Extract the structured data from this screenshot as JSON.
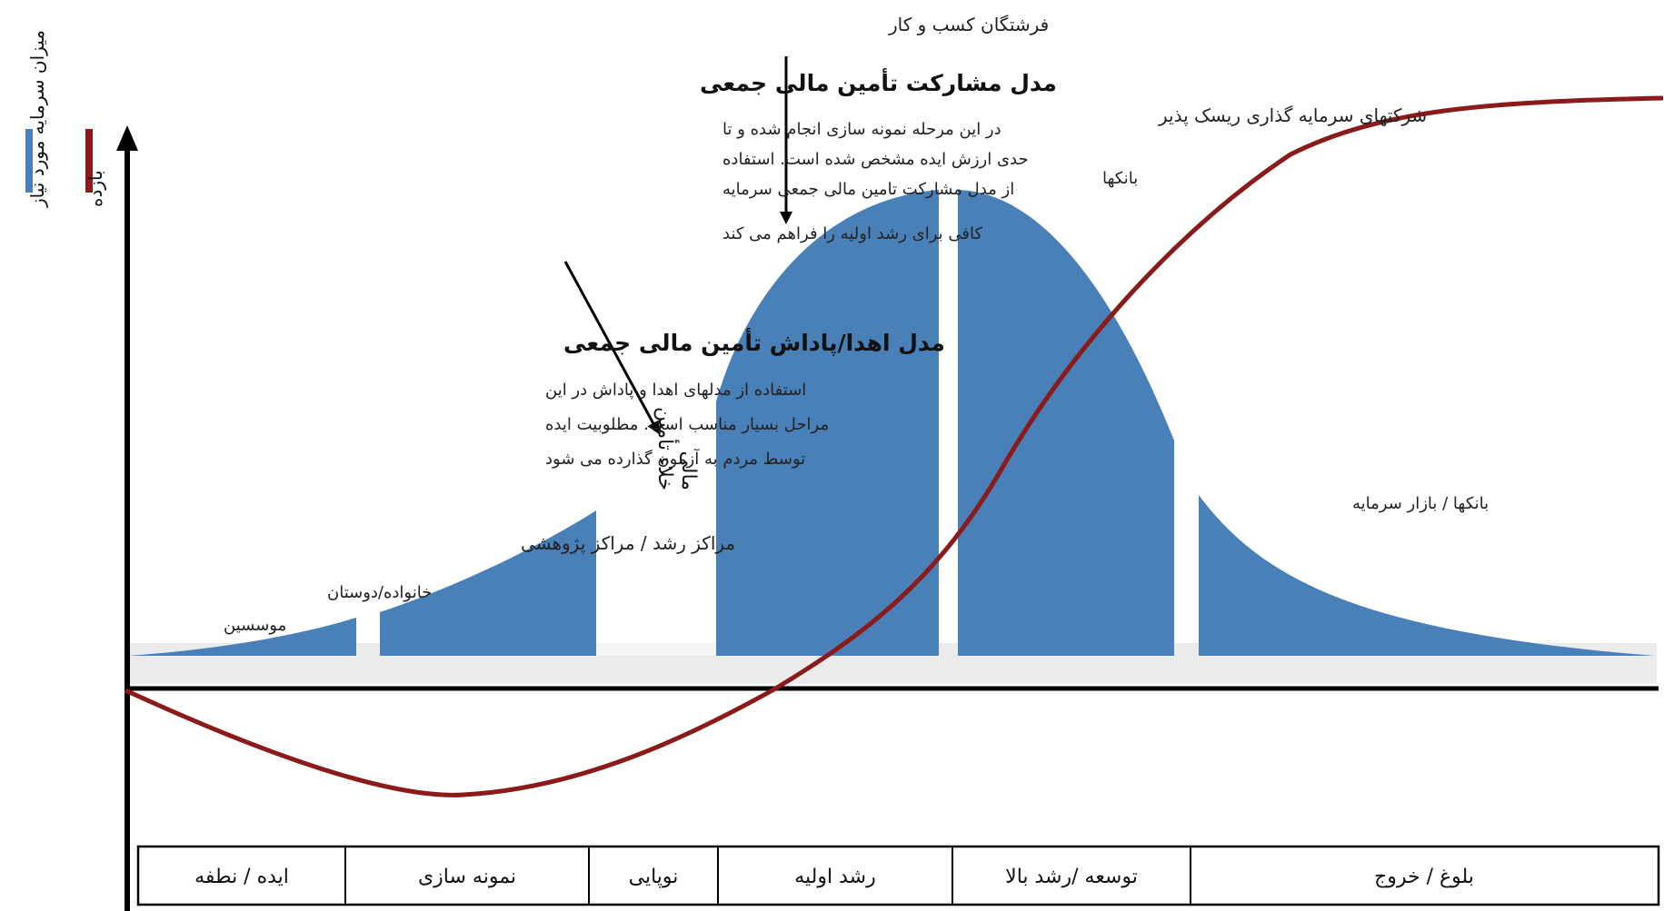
{
  "legend": {
    "capital": {
      "label": "میزان سرمایه مورد نیاز",
      "color": "#4a80b8"
    },
    "return": {
      "label": "بازده",
      "color": "#8b1a1a"
    }
  },
  "annotations": {
    "angels": "فرشتگان کسب و کار",
    "vc": "شرکتهای سرمایه گذاری ریسک پذیر",
    "banks_top": "بانکها",
    "banks_market": "بانکها / بازار سرمایه",
    "incubators": "مراکز رشد / مراکز پژوهشی",
    "family_line1": "خانواده/دوستان",
    "family_line2": "موسسین",
    "funding_gap_line1": "خلاء تأمین",
    "funding_gap_line2": "مالی"
  },
  "equity_box": {
    "heading": "مدل مشارکت تأمین مالی جمعی",
    "lines": [
      "در این مرحله نمونه سازی انجام شده و تا",
      "حدی ارزش ایده مشخص شده است. استفاده",
      "از مدل مشارکت تامین مالی جمعی سرمایه",
      "کافی برای رشد اولیه را فراهم می کند"
    ]
  },
  "reward_box": {
    "heading": "مدل اهدا/پاداش تأمین مالی جمعی",
    "lines": [
      "استفاده از مدلهای اهدا و پاداش در این",
      "مراحل بسیار مناسب است. مطلوبیت ایده",
      "توسط مردم به آزمون گذارده می شود"
    ]
  },
  "stages": [
    "ایده / نطفه",
    "نمونه سازی",
    "نوپایی",
    "رشد اولیه",
    "توسعه /رشد بالا",
    "بلوغ / خروج"
  ],
  "colors": {
    "fill": "#4a80b8",
    "curve": "#8b1a1a",
    "band": "#ebebeb",
    "axis": "#000000"
  }
}
